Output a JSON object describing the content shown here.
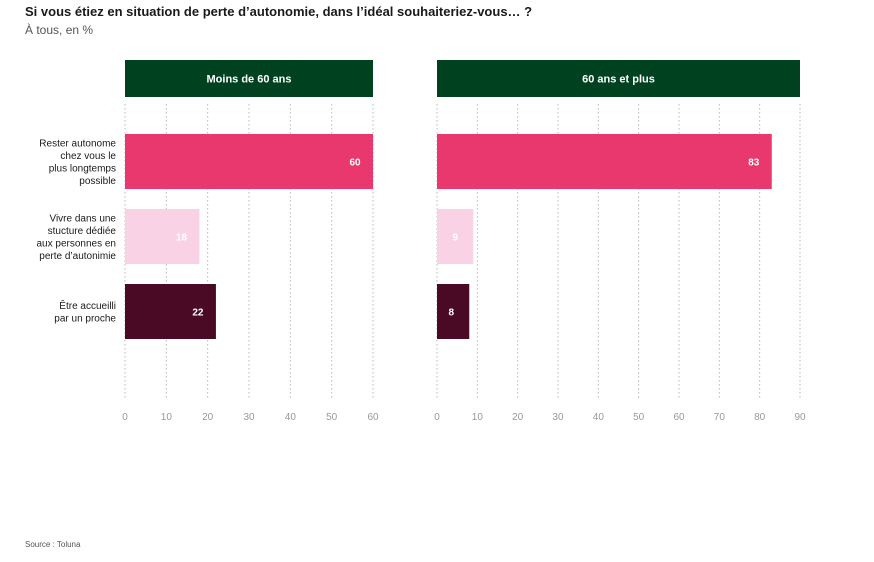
{
  "title": "Si vous étiez en situation de perte d’autonomie, dans l’idéal souhaiteriez-vous… ?",
  "subtitle": "À tous, en %",
  "source": "Source : Toluna",
  "chart_data": {
    "type": "bar",
    "orientation": "horizontal",
    "categories": [
      [
        "Rester autonome",
        "chez vous le",
        "plus longtemps",
        "possible"
      ],
      [
        "Vivre dans une",
        "stucture dédiée",
        "aux personnes en",
        "perte d’autonimie"
      ],
      [
        "Être accueilli",
        "par un proche"
      ]
    ],
    "colors": [
      "#e8386d",
      "#f9d3e5",
      "#4a0a25"
    ],
    "header_color": "#00421f",
    "grid": true,
    "panels": [
      {
        "title": "Moins de 60 ans",
        "values": [
          60,
          18,
          22
        ],
        "xlim": [
          0,
          60
        ],
        "ticks": [
          0,
          10,
          20,
          30,
          40,
          50,
          60
        ]
      },
      {
        "title": "60 ans et plus",
        "values": [
          83,
          9,
          8
        ],
        "xlim": [
          0,
          90
        ],
        "ticks": [
          0,
          10,
          20,
          30,
          40,
          50,
          60,
          70,
          80,
          90
        ]
      }
    ]
  }
}
